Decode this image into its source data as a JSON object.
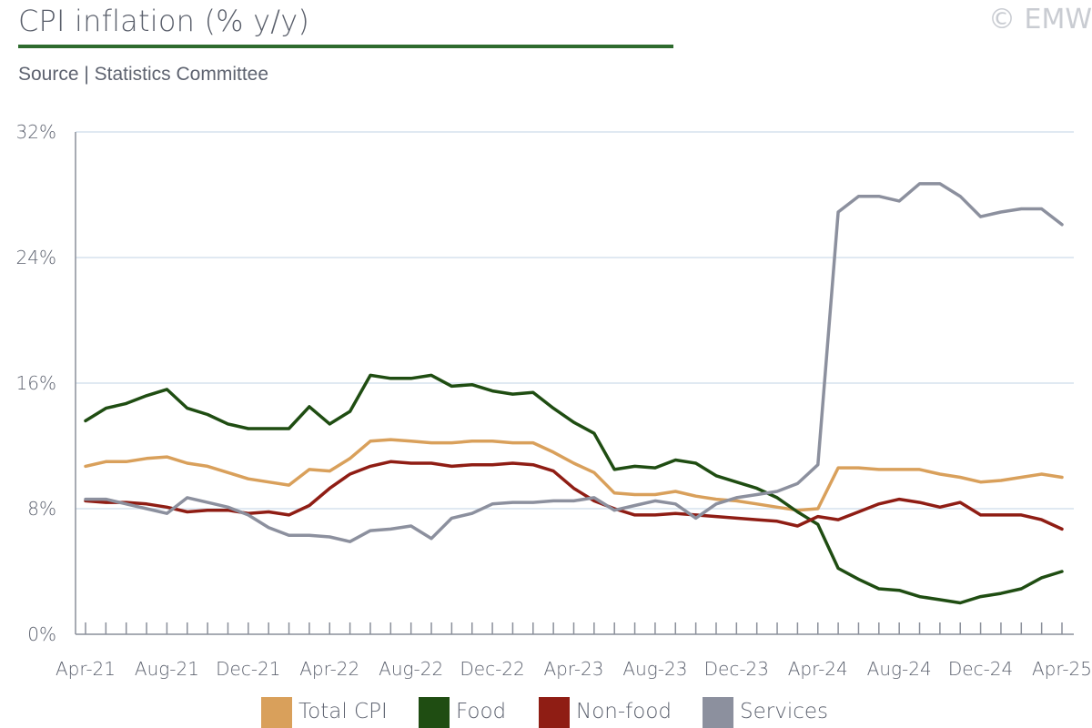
{
  "header": {
    "title": "CPI inflation (% y/y)",
    "subtitle": "Source | Statistics Committee",
    "copyright": "© EMW",
    "accent_color": "#2e6b2e"
  },
  "chart_data": {
    "type": "line",
    "title": "CPI inflation (% y/y)",
    "xlabel": "",
    "ylabel": "",
    "ylim": [
      0,
      32
    ],
    "y_ticks": [
      0,
      8,
      16,
      24,
      32
    ],
    "y_tick_labels": [
      "0%",
      "8%",
      "16%",
      "24%",
      "32%"
    ],
    "x": [
      "Apr-21",
      "May-21",
      "Jun-21",
      "Jul-21",
      "Aug-21",
      "Sep-21",
      "Oct-21",
      "Nov-21",
      "Dec-21",
      "Jan-22",
      "Feb-22",
      "Mar-22",
      "Apr-22",
      "May-22",
      "Jun-22",
      "Jul-22",
      "Aug-22",
      "Sep-22",
      "Oct-22",
      "Nov-22",
      "Dec-22",
      "Jan-23",
      "Feb-23",
      "Mar-23",
      "Apr-23",
      "May-23",
      "Jun-23",
      "Jul-23",
      "Aug-23",
      "Sep-23",
      "Oct-23",
      "Nov-23",
      "Dec-23",
      "Jan-24",
      "Feb-24",
      "Mar-24",
      "Apr-24",
      "May-24",
      "Jun-24",
      "Jul-24",
      "Aug-24",
      "Sep-24",
      "Oct-24",
      "Nov-24",
      "Dec-24",
      "Jan-25",
      "Feb-25",
      "Mar-25",
      "Apr-25"
    ],
    "x_tick_labels": [
      "Apr-21",
      "Aug-21",
      "Dec-21",
      "Apr-22",
      "Aug-22",
      "Dec-22",
      "Apr-23",
      "Aug-23",
      "Dec-23",
      "Apr-24",
      "Aug-24",
      "Dec-24",
      "Apr-25"
    ],
    "grid": true,
    "legend_position": "bottom",
    "series": [
      {
        "name": "Total CPI",
        "color": "#d9a05b",
        "values": [
          10.7,
          11.0,
          11.0,
          11.2,
          11.3,
          10.9,
          10.7,
          10.3,
          9.9,
          9.7,
          9.5,
          10.5,
          10.4,
          11.2,
          12.3,
          12.4,
          12.3,
          12.2,
          12.2,
          12.3,
          12.3,
          12.2,
          12.2,
          11.6,
          10.9,
          10.3,
          9.0,
          8.9,
          8.9,
          9.1,
          8.8,
          8.6,
          8.5,
          8.3,
          8.1,
          7.9,
          8.0,
          10.6,
          10.6,
          10.5,
          10.5,
          10.5,
          10.2,
          10.0,
          9.7,
          9.8,
          10.0,
          10.2,
          10.0
        ]
      },
      {
        "name": "Food",
        "color": "#1f4d12",
        "values": [
          13.6,
          14.4,
          14.7,
          15.2,
          15.6,
          14.4,
          14.0,
          13.4,
          13.1,
          13.1,
          13.1,
          14.5,
          13.4,
          14.2,
          16.5,
          16.3,
          16.3,
          16.5,
          15.8,
          15.9,
          15.5,
          15.3,
          15.4,
          14.4,
          13.5,
          12.8,
          10.5,
          10.7,
          10.6,
          11.1,
          10.9,
          10.1,
          9.7,
          9.3,
          8.7,
          7.8,
          7.0,
          4.2,
          3.5,
          2.9,
          2.8,
          2.4,
          2.2,
          2.0,
          2.4,
          2.6,
          2.9,
          3.6,
          4.0
        ]
      },
      {
        "name": "Non-food",
        "color": "#8f1d14",
        "values": [
          8.5,
          8.4,
          8.4,
          8.3,
          8.1,
          7.8,
          7.9,
          7.9,
          7.7,
          7.8,
          7.6,
          8.2,
          9.3,
          10.2,
          10.7,
          11.0,
          10.9,
          10.9,
          10.7,
          10.8,
          10.8,
          10.9,
          10.8,
          10.4,
          9.3,
          8.5,
          8.0,
          7.6,
          7.6,
          7.7,
          7.6,
          7.5,
          7.4,
          7.3,
          7.2,
          6.9,
          7.5,
          7.3,
          7.8,
          8.3,
          8.6,
          8.4,
          8.1,
          8.4,
          7.6,
          7.6,
          7.6,
          7.3,
          6.7
        ]
      },
      {
        "name": "Services",
        "color": "#8c909e",
        "values": [
          8.6,
          8.6,
          8.3,
          8.0,
          7.7,
          8.7,
          8.4,
          8.1,
          7.6,
          6.8,
          6.3,
          6.3,
          6.2,
          5.9,
          6.6,
          6.7,
          6.9,
          6.1,
          7.4,
          7.7,
          8.3,
          8.4,
          8.4,
          8.5,
          8.5,
          8.7,
          7.9,
          8.2,
          8.5,
          8.3,
          7.4,
          8.3,
          8.7,
          8.9,
          9.1,
          9.6,
          10.8,
          26.9,
          27.9,
          27.9,
          27.6,
          28.7,
          28.7,
          27.9,
          26.6,
          26.9,
          27.1,
          27.1,
          26.1
        ]
      }
    ]
  }
}
